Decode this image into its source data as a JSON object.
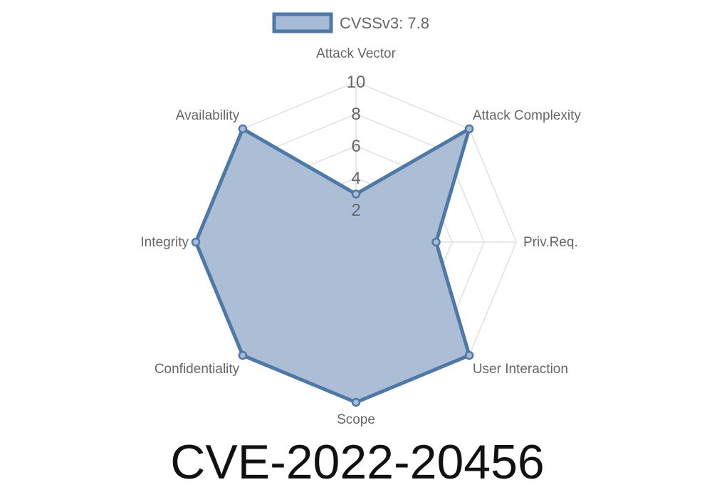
{
  "chart_data": {
    "type": "radar",
    "title": "CVE-2022-20456",
    "categories": [
      "Attack Vector",
      "Attack Complexity",
      "Priv.Req.",
      "User Interaction",
      "Scope",
      "Confidentiality",
      "Integrity",
      "Availability"
    ],
    "series": [
      {
        "name": "CVSSv3: 7.8",
        "values": [
          3,
          10,
          5,
          10,
          10,
          10,
          10,
          10
        ]
      }
    ],
    "rlim": [
      0,
      10
    ],
    "ticks": [
      "2",
      "4",
      "6",
      "8",
      "10"
    ],
    "grid": true,
    "legend": "top",
    "colors": {
      "line": "#4e79a7",
      "fill": "#a7bbd4",
      "grid": "#e0e0e0",
      "text": "#666666"
    }
  }
}
